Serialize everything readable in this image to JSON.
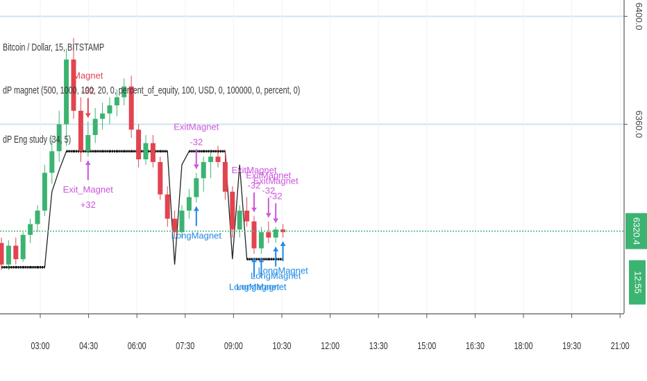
{
  "legend": {
    "symbol": "Bitcoin / Dollar, 15, BITSTAMP",
    "study1": "dP magnet (500, 1000, 100, 20, 0, percent_of_equity, 100, USD, 0, 100000, 0, percent, 0)",
    "study2": "dP Eng study (34, 5)"
  },
  "price_axis": {
    "labels": [
      "6400.0",
      "6360.0",
      "6320.4"
    ],
    "last_price": "6320.4",
    "countdown": "12:55"
  },
  "time_axis": {
    "labels": [
      "03:00",
      "04:30",
      "06:00",
      "07:30",
      "09:00",
      "10:30",
      "12:00",
      "13:30",
      "15:00",
      "16:30",
      "18:00",
      "19:30",
      "21:00"
    ]
  },
  "colors": {
    "up": "#3cb371",
    "down": "#e2444f",
    "exit_long": "#cc55dd",
    "long": "#1e88e5",
    "entry_short": "#e2444f",
    "last_price": "#3cb371",
    "study_line": "#111111"
  },
  "chart_data": {
    "type": "candlestick",
    "title": "Bitcoin / Dollar, 15, BITSTAMP",
    "interval": "15",
    "ylim": [
      6290,
      6404
    ],
    "grid": "horizontal",
    "candles": [
      {
        "o": 6316,
        "h": 6318,
        "l": 6306,
        "c": 6308
      },
      {
        "o": 6308,
        "h": 6317,
        "l": 6306,
        "c": 6315
      },
      {
        "o": 6315,
        "h": 6318,
        "l": 6308,
        "c": 6310
      },
      {
        "o": 6310,
        "h": 6320,
        "l": 6309,
        "c": 6319
      },
      {
        "o": 6319,
        "h": 6325,
        "l": 6316,
        "c": 6323
      },
      {
        "o": 6323,
        "h": 6330,
        "l": 6320,
        "c": 6328
      },
      {
        "o": 6328,
        "h": 6345,
        "l": 6326,
        "c": 6342
      },
      {
        "o": 6342,
        "h": 6355,
        "l": 6338,
        "c": 6350
      },
      {
        "o": 6350,
        "h": 6365,
        "l": 6346,
        "c": 6360
      },
      {
        "o": 6360,
        "h": 6388,
        "l": 6352,
        "c": 6384
      },
      {
        "o": 6384,
        "h": 6392,
        "l": 6362,
        "c": 6365
      },
      {
        "o": 6365,
        "h": 6370,
        "l": 6346,
        "c": 6350
      },
      {
        "o": 6350,
        "h": 6361,
        "l": 6348,
        "c": 6356
      },
      {
        "o": 6356,
        "h": 6366,
        "l": 6353,
        "c": 6362
      },
      {
        "o": 6362,
        "h": 6368,
        "l": 6358,
        "c": 6364
      },
      {
        "o": 6364,
        "h": 6370,
        "l": 6360,
        "c": 6367
      },
      {
        "o": 6367,
        "h": 6373,
        "l": 6363,
        "c": 6370
      },
      {
        "o": 6370,
        "h": 6377,
        "l": 6367,
        "c": 6374
      },
      {
        "o": 6374,
        "h": 6378,
        "l": 6355,
        "c": 6358
      },
      {
        "o": 6358,
        "h": 6360,
        "l": 6344,
        "c": 6347
      },
      {
        "o": 6347,
        "h": 6356,
        "l": 6345,
        "c": 6353
      },
      {
        "o": 6353,
        "h": 6356,
        "l": 6344,
        "c": 6346
      },
      {
        "o": 6346,
        "h": 6348,
        "l": 6332,
        "c": 6334
      },
      {
        "o": 6334,
        "h": 6337,
        "l": 6322,
        "c": 6325
      },
      {
        "o": 6325,
        "h": 6328,
        "l": 6318,
        "c": 6320
      },
      {
        "o": 6320,
        "h": 6330,
        "l": 6318,
        "c": 6328
      },
      {
        "o": 6328,
        "h": 6336,
        "l": 6325,
        "c": 6333
      },
      {
        "o": 6333,
        "h": 6342,
        "l": 6331,
        "c": 6340
      },
      {
        "o": 6340,
        "h": 6348,
        "l": 6335,
        "c": 6346
      },
      {
        "o": 6346,
        "h": 6350,
        "l": 6340,
        "c": 6348
      },
      {
        "o": 6348,
        "h": 6352,
        "l": 6344,
        "c": 6346
      },
      {
        "o": 6346,
        "h": 6350,
        "l": 6332,
        "c": 6335
      },
      {
        "o": 6335,
        "h": 6337,
        "l": 6318,
        "c": 6321
      },
      {
        "o": 6321,
        "h": 6330,
        "l": 6318,
        "c": 6328
      },
      {
        "o": 6328,
        "h": 6333,
        "l": 6322,
        "c": 6324
      },
      {
        "o": 6324,
        "h": 6326,
        "l": 6312,
        "c": 6314
      },
      {
        "o": 6314,
        "h": 6322,
        "l": 6312,
        "c": 6320
      },
      {
        "o": 6320,
        "h": 6324,
        "l": 6316,
        "c": 6318
      },
      {
        "o": 6318,
        "h": 6322,
        "l": 6316,
        "c": 6321
      },
      {
        "o": 6321,
        "h": 6323,
        "l": 6318,
        "c": 6320
      }
    ],
    "study_line": [
      6307,
      6307,
      6307,
      6307,
      6307,
      6307,
      6307,
      6335,
      6343,
      6350,
      6350,
      6350,
      6350,
      6350,
      6350,
      6350,
      6350,
      6350,
      6350,
      6350,
      6350,
      6350,
      6350,
      6350,
      6308,
      6345,
      6350,
      6350,
      6350,
      6350,
      6350,
      6350,
      6310,
      6345,
      6310,
      6310,
      6310,
      6310,
      6310,
      6310
    ],
    "signals": [
      {
        "i": 12,
        "side": "top",
        "color_key": "entry_short",
        "lines": [
          "Magnet",
          "-32"
        ]
      },
      {
        "i": 12,
        "side": "bottom",
        "color_key": "exit_long",
        "lines": [
          "Exit_Magnet",
          "+32"
        ]
      },
      {
        "i": 27,
        "side": "top",
        "color_key": "exit_long",
        "lines": [
          "ExitMagnet",
          "-32"
        ]
      },
      {
        "i": 27,
        "side": "bottom",
        "color_key": "long",
        "lines": [
          "LongMagnet"
        ]
      },
      {
        "i": 35,
        "side": "top",
        "color_key": "exit_long",
        "lines": [
          "ExitMagnet",
          "-32"
        ]
      },
      {
        "i": 35,
        "side": "bottom",
        "color_key": "long",
        "lines": [
          "LongMagnet"
        ]
      },
      {
        "i": 36,
        "side": "bottom",
        "color_key": "long",
        "lines": [
          "LongMagnet"
        ]
      },
      {
        "i": 37,
        "side": "top",
        "color_key": "exit_long",
        "lines": [
          "ExitMagnet",
          "-32"
        ]
      },
      {
        "i": 38,
        "side": "top",
        "color_key": "exit_long",
        "lines": [
          "ExitMagnet",
          "-32"
        ]
      },
      {
        "i": 38,
        "side": "bottom",
        "color_key": "long",
        "lines": [
          "LongMagnet"
        ]
      },
      {
        "i": 39,
        "side": "bottom",
        "color_key": "long",
        "lines": [
          "LongMagnet"
        ]
      }
    ],
    "horizontal_levels": [
      6400,
      6360
    ]
  }
}
